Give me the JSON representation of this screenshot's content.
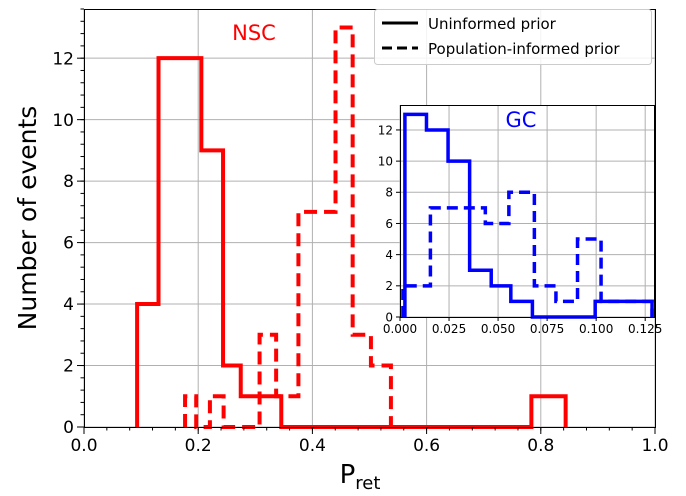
{
  "colors": {
    "nsc": "#ff0000",
    "gc": "#0000ff",
    "grid": "#b0b0b0",
    "axis": "#000000"
  },
  "chart_data": [
    {
      "type": "histogram-step",
      "xlabel_main": "P",
      "xlabel_sub": "ret",
      "ylabel": "Number of events",
      "xlim": [
        0.0,
        1.0
      ],
      "ylim": [
        0,
        13.6
      ],
      "xticks": [
        "0.0",
        "0.2",
        "0.4",
        "0.6",
        "0.8",
        "1.0"
      ],
      "xtick_values": [
        0.0,
        0.2,
        0.4,
        0.6,
        0.8,
        1.0
      ],
      "yticks": [
        "0",
        "2",
        "4",
        "6",
        "8",
        "10",
        "12"
      ],
      "ytick_values": [
        0,
        2,
        4,
        6,
        8,
        10,
        12
      ],
      "grid": true,
      "annotation": "NSC",
      "legend_placement": "top-right",
      "legend": [
        {
          "label": "Uninformed prior",
          "style": "solid"
        },
        {
          "label": "Population-informed prior",
          "style": "dashed"
        }
      ],
      "series": [
        {
          "style": "solid",
          "edges": [
            0.093,
            0.1305,
            0.1685,
            0.2055,
            0.2435,
            0.2745,
            0.3115,
            0.3455,
            0.7835,
            0.8065,
            0.8225,
            0.8435
          ],
          "counts": [
            4,
            12,
            12,
            9,
            2,
            1,
            1,
            0,
            1,
            1,
            1
          ]
        },
        {
          "style": "dashed",
          "edges": [
            0.177,
            0.1965,
            0.2205,
            0.2445,
            0.3075,
            0.3365,
            0.3755,
            0.4405,
            0.4705,
            0.5025,
            0.5375
          ],
          "counts": [
            1,
            0,
            1,
            0,
            3,
            1,
            7,
            13,
            3,
            2
          ]
        }
      ]
    },
    {
      "type": "histogram-step",
      "xlim": [
        0.0,
        0.13
      ],
      "ylim": [
        0,
        13.6
      ],
      "xticks": [
        "0.000",
        "0.025",
        "0.050",
        "0.075",
        "0.100",
        "0.125"
      ],
      "xtick_values": [
        0.0,
        0.025,
        0.05,
        0.075,
        0.1,
        0.125
      ],
      "yticks": [
        "0",
        "2",
        "4",
        "6",
        "8",
        "10",
        "12"
      ],
      "ytick_values": [
        0,
        2,
        4,
        6,
        8,
        10,
        12
      ],
      "grid": true,
      "annotation": "GC",
      "series": [
        {
          "style": "solid",
          "edges": [
            0.0025,
            0.0135,
            0.0245,
            0.0355,
            0.0465,
            0.0565,
            0.0675,
            0.0995,
            0.1105,
            0.1285
          ],
          "counts": [
            13,
            12,
            10,
            3,
            2,
            1,
            0,
            1,
            1
          ]
        },
        {
          "style": "dashed",
          "edges": [
            0.0015,
            0.0155,
            0.0285,
            0.0435,
            0.0555,
            0.0685,
            0.0795,
            0.0905,
            0.1025,
            0.1285
          ],
          "counts": [
            2,
            7,
            7,
            6,
            8,
            2,
            1,
            5,
            1
          ]
        }
      ]
    }
  ]
}
